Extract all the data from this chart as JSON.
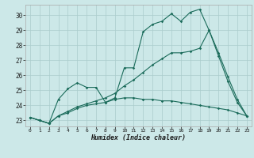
{
  "xlabel": "Humidex (Indice chaleur)",
  "bg_color": "#cce8e8",
  "grid_color": "#aacccc",
  "line_color": "#1a6b5a",
  "xlim": [
    -0.5,
    23.5
  ],
  "ylim": [
    22.6,
    30.7
  ],
  "yticks": [
    23,
    24,
    25,
    26,
    27,
    28,
    29,
    30
  ],
  "xticks": [
    0,
    1,
    2,
    3,
    4,
    5,
    6,
    7,
    8,
    9,
    10,
    11,
    12,
    13,
    14,
    15,
    16,
    17,
    18,
    19,
    20,
    21,
    22,
    23
  ],
  "series1_x": [
    0,
    1,
    2,
    3,
    4,
    5,
    6,
    7,
    8,
    9,
    10,
    11,
    12,
    13,
    14,
    15,
    16,
    17,
    18,
    19,
    20,
    21,
    22,
    23
  ],
  "series1_y": [
    23.2,
    23.0,
    22.8,
    24.4,
    25.1,
    25.5,
    25.2,
    25.2,
    24.2,
    24.5,
    26.5,
    26.5,
    28.9,
    29.4,
    29.6,
    30.1,
    29.6,
    30.2,
    30.4,
    29.0,
    27.3,
    25.6,
    24.2,
    23.3
  ],
  "series2_x": [
    0,
    1,
    2,
    3,
    4,
    5,
    6,
    7,
    8,
    9,
    10,
    11,
    12,
    13,
    14,
    15,
    16,
    17,
    18,
    19,
    20,
    21,
    22,
    23
  ],
  "series2_y": [
    23.2,
    23.0,
    22.8,
    23.3,
    23.5,
    23.8,
    24.0,
    24.1,
    24.2,
    24.4,
    24.5,
    24.5,
    24.4,
    24.4,
    24.3,
    24.3,
    24.2,
    24.1,
    24.0,
    23.9,
    23.8,
    23.7,
    23.5,
    23.3
  ],
  "series3_x": [
    0,
    1,
    2,
    3,
    4,
    5,
    6,
    7,
    8,
    9,
    10,
    11,
    12,
    13,
    14,
    15,
    16,
    17,
    18,
    19,
    20,
    21,
    22,
    23
  ],
  "series3_y": [
    23.2,
    23.0,
    22.8,
    23.3,
    23.6,
    23.9,
    24.1,
    24.3,
    24.5,
    24.8,
    25.3,
    25.7,
    26.2,
    26.7,
    27.1,
    27.5,
    27.5,
    27.6,
    27.8,
    29.0,
    27.5,
    25.9,
    24.4,
    23.3
  ]
}
